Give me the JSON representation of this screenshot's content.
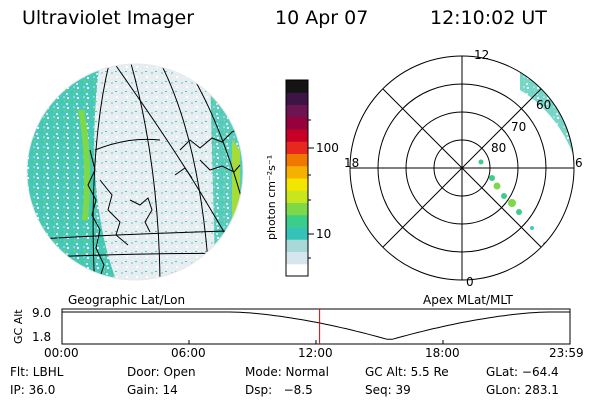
{
  "header": {
    "title": "Ultraviolet Imager",
    "date": "10 Apr 07",
    "time": "12:10:02 UT"
  },
  "left_panel": {
    "label": "Geographic Lat/Lon"
  },
  "right_panel": {
    "label": "Apex MLat/MLT",
    "mlt_labels": [
      "12",
      "18",
      "6",
      "0"
    ],
    "lat_labels": [
      "60",
      "70",
      "80"
    ]
  },
  "colorbar": {
    "unit": "photon cm⁻²s⁻¹",
    "ticks": [
      "100",
      "10"
    ],
    "colors": [
      "#ffffff",
      "#d7e6ee",
      "#a8d8d8",
      "#35c3b8",
      "#3dcd8a",
      "#7ed94a",
      "#c8e61e",
      "#f2e600",
      "#f5b000",
      "#f07800",
      "#e8281e",
      "#c80028",
      "#96003c",
      "#6e1450",
      "#3c1446",
      "#141414"
    ]
  },
  "altitude_plot": {
    "ylabel": "GC Alt",
    "ymax": "9.0",
    "ymin": "1.8",
    "x_ticks": [
      "00:00",
      "06:00",
      "12:00",
      "18:00",
      "23:59"
    ],
    "current_time_fraction": 0.5071
  },
  "status": {
    "flt": "Flt: LBHL",
    "door": "Door: Open",
    "mode": "Mode: Normal",
    "gc_alt": "GC Alt: 5.5 Re",
    "glat": "GLat: −64.4",
    "ip": "IP: 36.0",
    "gain": "Gain: 14",
    "dsp": "Dsp:   −8.5",
    "seq": "Seq: 39",
    "glon": "GLon: 283.1"
  }
}
